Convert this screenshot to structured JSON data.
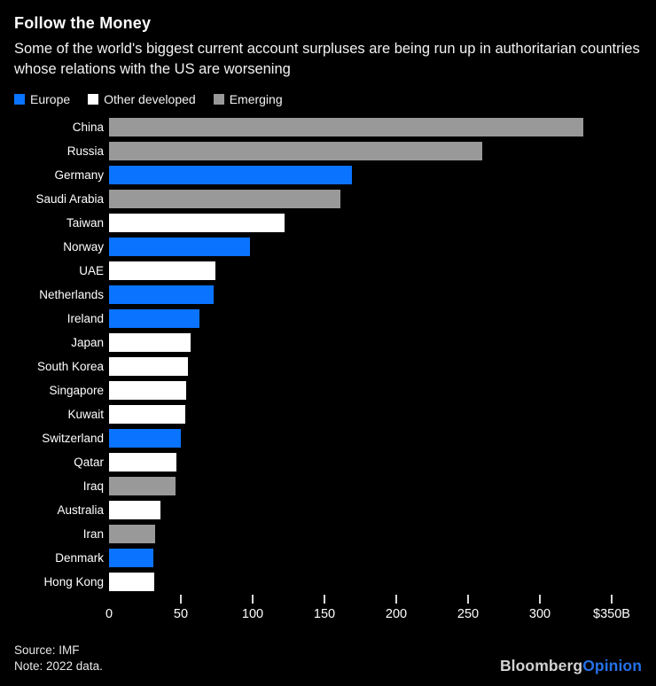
{
  "header": {
    "title": "Follow the Money",
    "subtitle": "Some of the world's biggest current account surpluses are being run up in authoritarian countries whose relations with the US are worsening"
  },
  "colors": {
    "background": "#000000",
    "text": "#ffffff",
    "europe_blue": "#0a73ff",
    "other_developed_white": "#ffffff",
    "emerging_gray": "#999999",
    "logo_opinion_blue": "#2571e8"
  },
  "chart_data": {
    "type": "bar",
    "orientation": "horizontal",
    "title": "Follow the Money",
    "unit": "USD billions",
    "xlim": [
      0,
      350
    ],
    "x_ticks": [
      0,
      50,
      100,
      150,
      200,
      250,
      300,
      350
    ],
    "x_tick_labels": [
      "0",
      "50",
      "100",
      "150",
      "200",
      "250",
      "300",
      "$350B"
    ],
    "grid": false,
    "legend_position": "top",
    "legend": [
      {
        "label": "Europe",
        "color": "#0a73ff"
      },
      {
        "label": "Other developed",
        "color": "#ffffff"
      },
      {
        "label": "Emerging",
        "color": "#999999"
      }
    ],
    "bars": [
      {
        "country": "China",
        "value": 330,
        "category": "Emerging"
      },
      {
        "country": "Russia",
        "value": 260,
        "category": "Emerging"
      },
      {
        "country": "Germany",
        "value": 169,
        "category": "Europe"
      },
      {
        "country": "Saudi Arabia",
        "value": 161,
        "category": "Emerging"
      },
      {
        "country": "Taiwan",
        "value": 122,
        "category": "Other developed"
      },
      {
        "country": "Norway",
        "value": 98,
        "category": "Europe"
      },
      {
        "country": "UAE",
        "value": 74,
        "category": "Other developed"
      },
      {
        "country": "Netherlands",
        "value": 73,
        "category": "Europe"
      },
      {
        "country": "Ireland",
        "value": 63,
        "category": "Europe"
      },
      {
        "country": "Japan",
        "value": 57,
        "category": "Other developed"
      },
      {
        "country": "South Korea",
        "value": 55,
        "category": "Other developed"
      },
      {
        "country": "Singapore",
        "value": 54,
        "category": "Other developed"
      },
      {
        "country": "Kuwait",
        "value": 53,
        "category": "Other developed"
      },
      {
        "country": "Switzerland",
        "value": 50,
        "category": "Europe"
      },
      {
        "country": "Qatar",
        "value": 47,
        "category": "Other developed"
      },
      {
        "country": "Iraq",
        "value": 46,
        "category": "Emerging"
      },
      {
        "country": "Australia",
        "value": 36,
        "category": "Other developed"
      },
      {
        "country": "Iran",
        "value": 32,
        "category": "Emerging"
      },
      {
        "country": "Denmark",
        "value": 31,
        "category": "Europe"
      },
      {
        "country": "Hong Kong",
        "value": 31.5,
        "category": "Other developed"
      }
    ]
  },
  "footer": {
    "source": "Source: IMF",
    "note": "Note: 2022 data.",
    "logo_bloomberg": "Bloomberg",
    "logo_opinion": "Opinion"
  }
}
